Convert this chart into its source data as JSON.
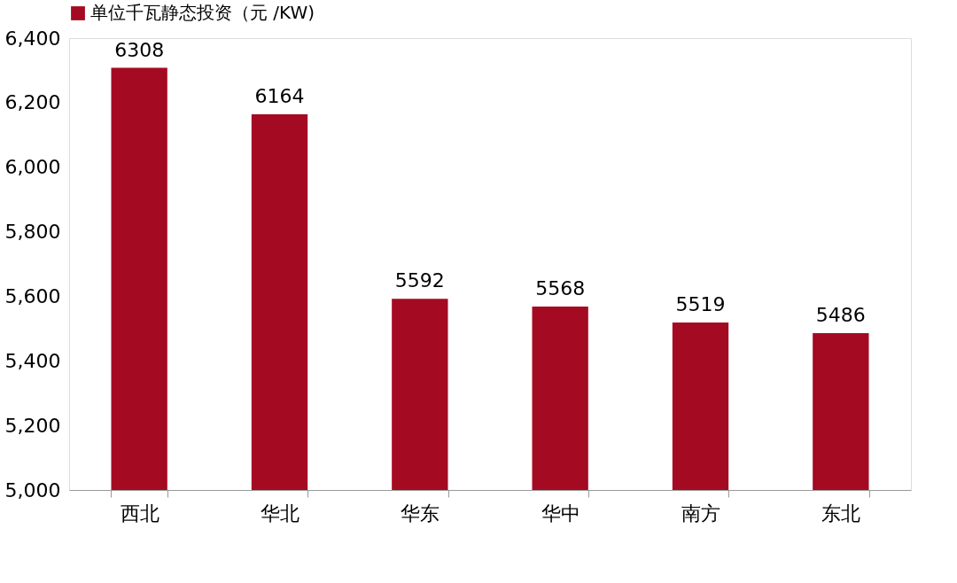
{
  "chart_data": {
    "type": "bar",
    "categories": [
      "西北",
      "华北",
      "华东",
      "华中",
      "南方",
      "东北"
    ],
    "series": [
      {
        "name": "单位千瓦静态投资（元 /KW)",
        "color": "#a50a23",
        "values": [
          6308,
          6164,
          5592,
          5568,
          5519,
          5486
        ]
      }
    ],
    "ylim": [
      5000,
      6400
    ],
    "yticks": [
      {
        "value": 5000,
        "label": "5,000"
      },
      {
        "value": 5200,
        "label": "5,200"
      },
      {
        "value": 5400,
        "label": "5,400"
      },
      {
        "value": 5600,
        "label": "5,600"
      },
      {
        "value": 5800,
        "label": "5,800"
      },
      {
        "value": 6000,
        "label": "6,000"
      },
      {
        "value": 6200,
        "label": "6,200"
      },
      {
        "value": 6400,
        "label": "6,400"
      }
    ],
    "data_labels": true,
    "grid": false,
    "legend": "top"
  }
}
